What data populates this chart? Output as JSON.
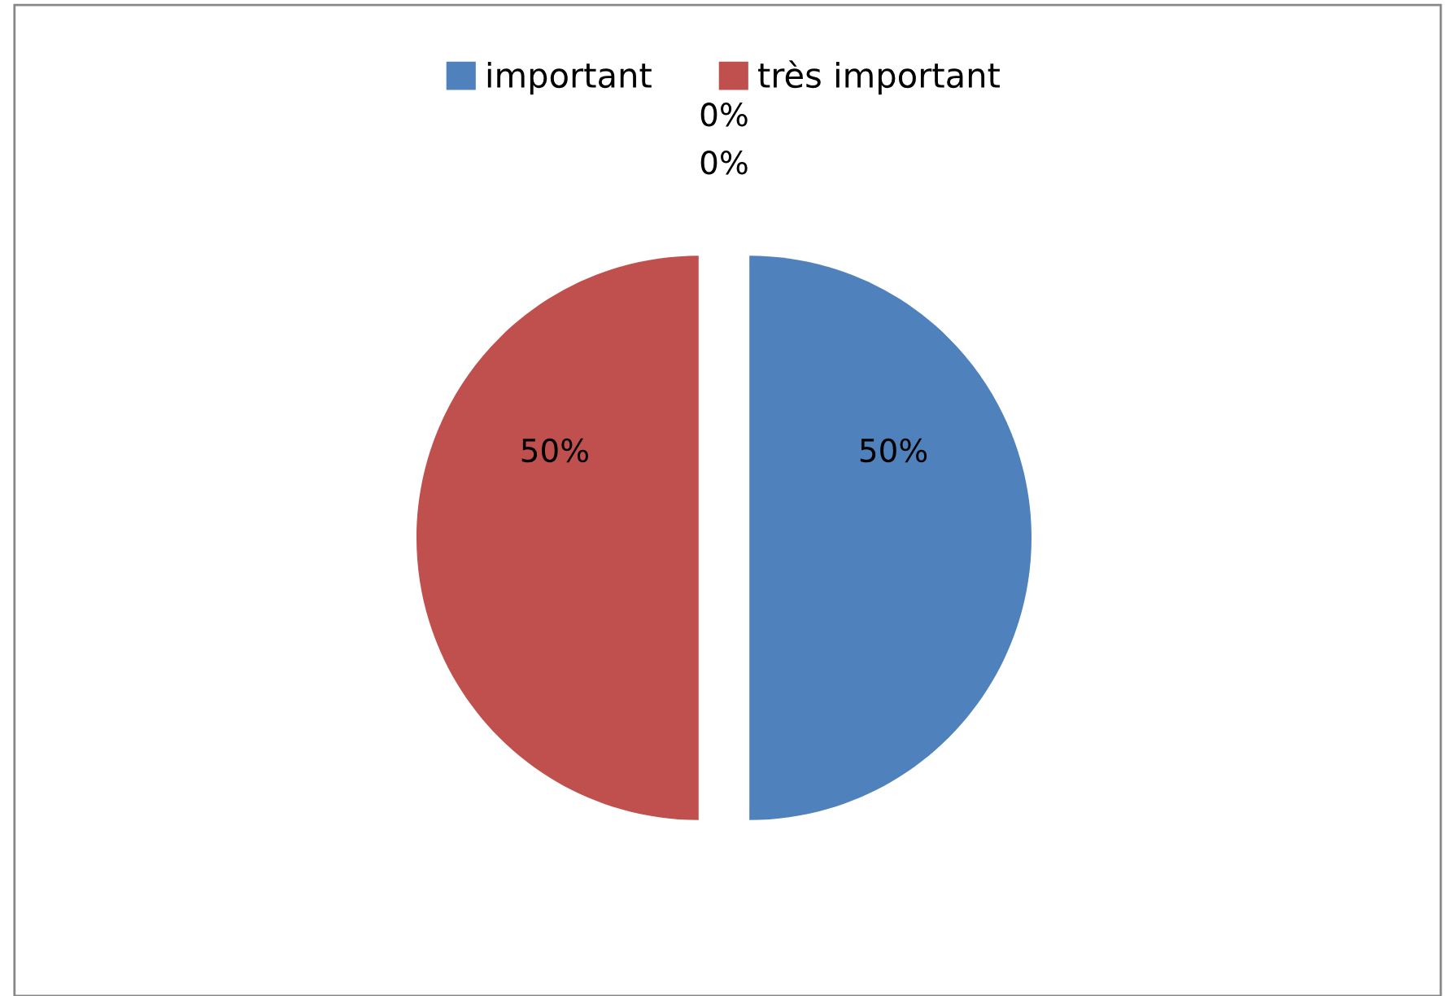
{
  "chart_data": {
    "type": "pie",
    "categories": [
      "important",
      "très important",
      null,
      null
    ],
    "values": [
      50,
      50,
      0,
      0
    ],
    "colors": [
      "#4f81bd",
      "#c0504d",
      "#9bbb59",
      "#8064a2"
    ],
    "value_labels": [
      "50%",
      "50%",
      "0%",
      "0%"
    ],
    "legend": "top"
  }
}
